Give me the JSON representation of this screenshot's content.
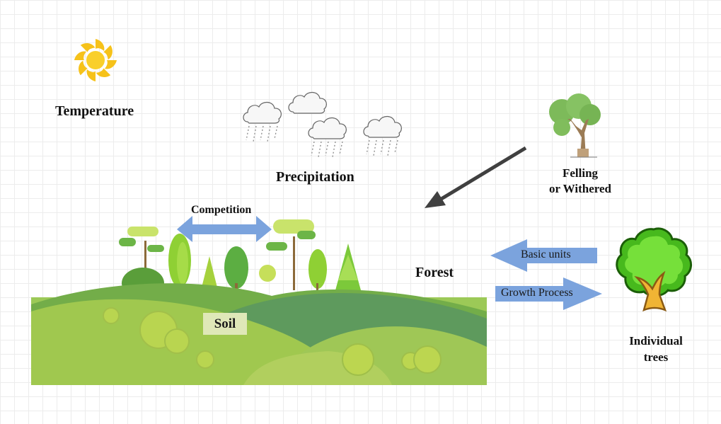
{
  "labels": {
    "temperature": "Temperature",
    "precipitation": "Precipitation",
    "felling_line1": "Felling",
    "felling_line2": "or Withered",
    "forest": "Forest",
    "individual_line1": "Individual",
    "individual_line2": "trees",
    "competition": "Competition",
    "basic_units": "Basic units",
    "growth_process": "Growth Process",
    "soil": "Soil"
  },
  "icons": {
    "sun": "sun-icon",
    "rain_clouds": "rain-cloud-icon",
    "withered_tree": "withered-tree-icon",
    "individual_tree": "cartoon-tree-icon",
    "landscape": "forest-hills-illustration"
  },
  "colors": {
    "arrow_blue": "#7ba3dd",
    "arrow_dark": "#404040",
    "sun": "#f6c21a",
    "tree_green": "#4fbf24",
    "trunk": "#e39a1c",
    "hill_green": "#8fbe4a",
    "soil_box": "#dfe8b8"
  }
}
